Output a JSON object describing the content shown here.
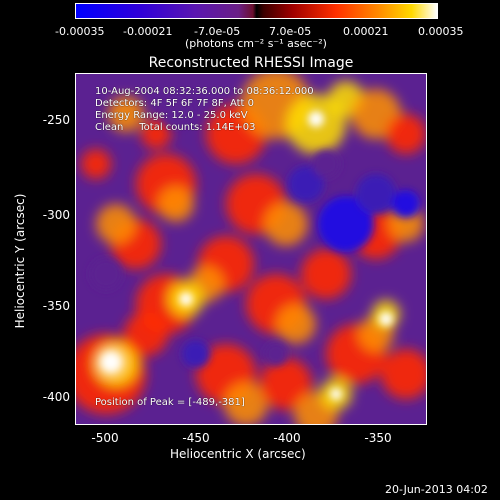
{
  "colorbar": {
    "tick_labels": [
      "-0.00035",
      "-0.00021",
      "-7.0e-05",
      "7.0e-05",
      "0.00021",
      "0.00035"
    ],
    "units_label": "(photons cm⁻² s⁻¹ asec⁻²)"
  },
  "image": {
    "title": "Reconstructed RHESSI Image",
    "time_range": "10-Aug-2004 08:32:36.000 to 08:36:12.000",
    "detectors": "Detectors: 4F 5F 6F 7F 8F, Att 0",
    "energy_range": "Energy Range: 12.0 - 25.0 keV",
    "clean_counts": "Clean     Total counts: 1.14E+03",
    "peak_position": "Position of Peak = [-489,-381]"
  },
  "axes": {
    "xlabel": "Heliocentric X (arcsec)",
    "ylabel": "Heliocentric Y (arcsec)",
    "xticks": [
      "-500",
      "-450",
      "-400",
      "-350"
    ],
    "yticks": [
      "-250",
      "-300",
      "-350",
      "-400"
    ],
    "xlim": [
      -512,
      -322
    ],
    "ylim": [
      -416,
      -226
    ]
  },
  "footer": {
    "timestamp": "20-Jun-2013 04:02"
  },
  "colors": {
    "hot": [
      "#000000",
      "#8a0000",
      "#ff2a00",
      "#ff9000",
      "#ffe000",
      "#ffffff"
    ],
    "cold": [
      "#5b2191",
      "#3b1fb5",
      "#2410e0"
    ]
  }
}
